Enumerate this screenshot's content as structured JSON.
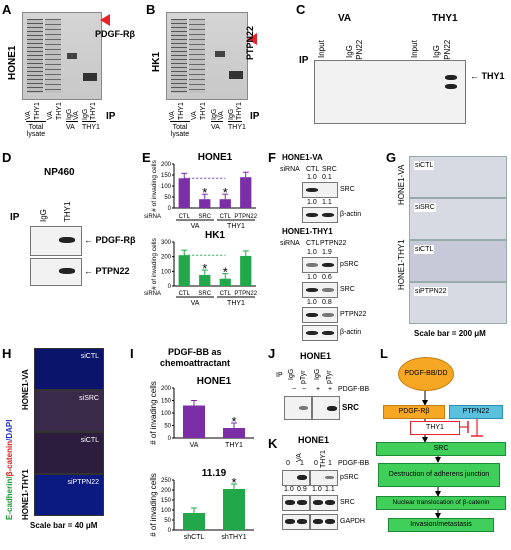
{
  "panels": {
    "A": {
      "letter": "A",
      "cell": "HONE1",
      "marker": "PDGF-Rβ",
      "lanes": [
        "VA",
        "THY1",
        "VA",
        "THY1",
        "IgG",
        "VA",
        "IgG",
        "THY1"
      ],
      "groups": [
        "Total lysate",
        "VA",
        "THY1"
      ],
      "ip": "IP"
    },
    "B": {
      "letter": "B",
      "cell": "HK1",
      "marker": "PTPN22",
      "lanes": [
        "VA",
        "THY1",
        "VA",
        "THY1",
        "IgG",
        "VA",
        "IgG",
        "THY1"
      ],
      "groups": [
        "Total lysate",
        "VA",
        "THY1"
      ],
      "ip": "IP"
    },
    "C": {
      "letter": "C",
      "va": "VA",
      "thy1": "THY1",
      "lanes": [
        "Input",
        "IgG",
        "PTPN22",
        "Input",
        "IgG",
        "PTPN22"
      ],
      "ip": "IP",
      "band": "THY1"
    },
    "D": {
      "letter": "D",
      "cell": "NP460",
      "ip": "IP",
      "lanes": [
        "IgG",
        "THY1"
      ],
      "bands": [
        "PDGF-Rβ",
        "PTPN22"
      ]
    },
    "E": {
      "letter": "E",
      "titles": [
        "HONE1",
        "HK1"
      ],
      "ylabel": "# of invading cells",
      "sirna": "siRNA",
      "lanes": [
        "CTL",
        "SRC",
        "CTL",
        "PTPN22"
      ],
      "groups": [
        "VA",
        "THY1"
      ]
    },
    "F": {
      "letter": "F",
      "blot1_title": "HONE1-VA",
      "blot1_sirna": [
        "siRNA",
        "CTL",
        "SRC"
      ],
      "blot1_rows": [
        {
          "label": "SRC",
          "q": [
            "1.0",
            "0.1"
          ]
        },
        {
          "label": "β-actin",
          "q": [
            "1.0",
            "1.1"
          ]
        }
      ],
      "blot2_title": "HONE1-THY1",
      "blot2_sirna": [
        "siRNA",
        "CTL",
        "PTPN22"
      ],
      "blot2_rows": [
        {
          "label": "pSRC",
          "q": [
            "1.0",
            "1.9"
          ]
        },
        {
          "label": "SRC",
          "q": [
            "1.0",
            "0.6"
          ]
        },
        {
          "label": "PTPN22",
          "q": [
            "1.0",
            "0.8"
          ]
        },
        {
          "label": "β-actin",
          "q": []
        }
      ]
    },
    "G": {
      "letter": "G",
      "group1": "HONE1-VA",
      "group2": "HONE1-THY1",
      "tiles": [
        "siCTL",
        "siSRC",
        "siCTL",
        "siPTPN22"
      ],
      "scale": "Scale bar = 200 μM"
    },
    "H": {
      "letter": "H",
      "stain_ecad": "E-cadherin/",
      "stain_bcat": "β-catenin",
      "stain_dapi": "/DAPI",
      "group1": "HONE1-VA",
      "group2": "HONE1-THY1",
      "tiles": [
        "siCTL",
        "siSRC",
        "siCTL",
        "siPTPN22"
      ],
      "scale": "Scale bar = 40 μM"
    },
    "I": {
      "letter": "I",
      "header1": "PDGF-BB as",
      "header2": "chemoattractant",
      "title1": "HONE1",
      "title2": "11.19",
      "ylabel": "# of invading cells"
    },
    "J": {
      "letter": "J",
      "title": "HONE1",
      "ip": "IP",
      "lanes": [
        "IgG",
        "pTyr",
        "IgG",
        "pTyr"
      ],
      "treatment": [
        "−",
        "+"
      ],
      "pdgf": "PDGF-BB",
      "band": "SRC"
    },
    "K": {
      "letter": "K",
      "title": "HONE1",
      "lanes": [
        "VA",
        "THY1"
      ],
      "treatment": [
        "0",
        "1",
        "0",
        "1"
      ],
      "pdgf": "PDGF-BB",
      "rows": [
        {
          "label": "pSRC",
          "q": [
            "0",
            "1",
            "0",
            "1"
          ]
        },
        {
          "label": "SRC",
          "q": [
            "1.0",
            "0.9",
            "1.0",
            "1.1"
          ]
        },
        {
          "label": "GAPDH",
          "q": []
        }
      ]
    },
    "L": {
      "letter": "L",
      "nodes": [
        "PDGF-BB/DD",
        "PDGF-Rβ",
        "PTPN22",
        "THY1",
        "SRC",
        "Destruction of adherens junction",
        "Nuclear translocation of β-catenin",
        "Invasion/metastasis"
      ]
    }
  },
  "chart_data": [
    {
      "type": "bar",
      "title": "HONE1",
      "ylabel": "# of invading cells",
      "categories": [
        "CTL",
        "SRC",
        "CTL",
        "PTPN22"
      ],
      "values": [
        135,
        40,
        40,
        140
      ],
      "ylim": [
        0,
        200
      ],
      "yticks": [
        0,
        50,
        100,
        150,
        200
      ],
      "significance": [
        "",
        "*",
        "*",
        ""
      ],
      "color": "#7b2fa6"
    },
    {
      "type": "bar",
      "title": "HK1",
      "ylabel": "# of invading cells",
      "categories": [
        "CTL",
        "SRC",
        "CTL",
        "PTPN22"
      ],
      "values": [
        210,
        75,
        50,
        205
      ],
      "ylim": [
        0,
        300
      ],
      "yticks": [
        0,
        100,
        200,
        300
      ],
      "significance": [
        "",
        "*",
        "*",
        ""
      ],
      "color": "#22a84a"
    },
    {
      "type": "bar",
      "title": "HONE1",
      "ylabel": "# of invading cells",
      "categories": [
        "VA",
        "THY1"
      ],
      "values": [
        130,
        40
      ],
      "ylim": [
        0,
        200
      ],
      "yticks": [
        0,
        50,
        100,
        150,
        200
      ],
      "significance": [
        "",
        "*"
      ],
      "color": "#7b2fa6"
    },
    {
      "type": "bar",
      "title": "11.19",
      "ylabel": "# of invading cells",
      "categories": [
        "shCTL",
        "shTHY1"
      ],
      "values": [
        85,
        205
      ],
      "ylim": [
        0,
        250
      ],
      "yticks": [
        0,
        50,
        100,
        150,
        200,
        250
      ],
      "significance": [
        "",
        "*"
      ],
      "color": "#22a84a"
    }
  ],
  "colors": {
    "purple": "#7b2fa6",
    "green": "#22a84a",
    "red_arrow": "#e8212b",
    "node_orange": "#f5a623",
    "node_blue": "#5bc0de",
    "node_green": "#3fcf5a",
    "red": "#e8212b"
  }
}
